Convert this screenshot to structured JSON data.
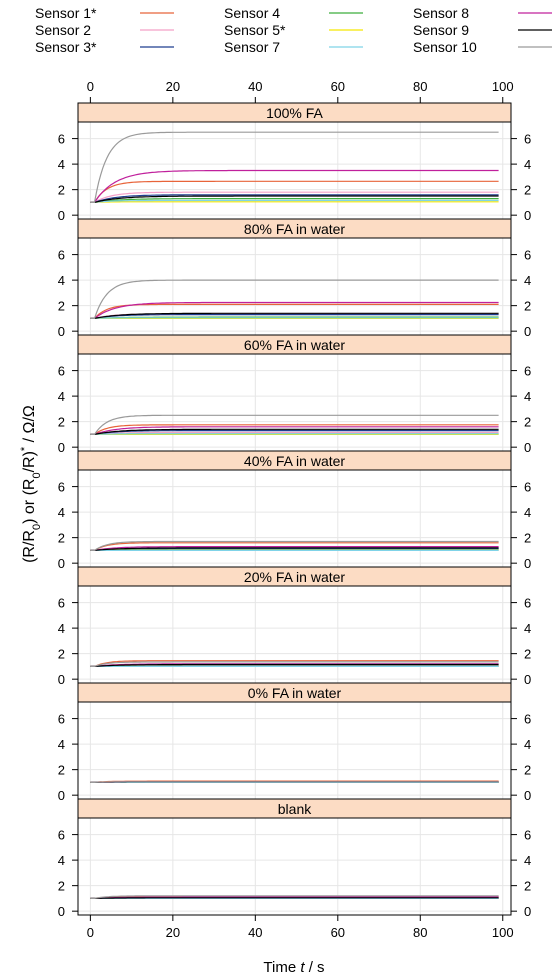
{
  "chart_data": {
    "type": "line",
    "xlabel_parts": [
      "Time ",
      "t",
      "  /  s"
    ],
    "ylabel_parts": [
      "(R/R",
      "0",
      ")  or  (R",
      "0",
      "/R)",
      "*",
      "  /  Ω/Ω"
    ],
    "xlim": [
      -3,
      102
    ],
    "ylim": [
      -0.3,
      7.3
    ],
    "x_ticks": [
      0,
      20,
      40,
      60,
      80,
      100
    ],
    "y_ticks": [
      0,
      2,
      4,
      6
    ],
    "grid": true,
    "legend_position": "top",
    "series": [
      {
        "name": "Sensor 1*",
        "color": "#e8643a",
        "final": [
          2.65,
          2.1,
          1.75,
          1.6,
          1.45,
          1.1,
          1.15
        ]
      },
      {
        "name": "Sensor 2",
        "color": "#f4a0c8",
        "final": [
          1.8,
          1.35,
          1.15,
          1.05,
          1.05,
          1.0,
          1.0
        ]
      },
      {
        "name": "Sensor 3*",
        "color": "#1f3f8f",
        "final": [
          1.6,
          1.3,
          1.3,
          1.15,
          1.05,
          1.0,
          1.05
        ]
      },
      {
        "name": "Sensor 4",
        "color": "#3cae3c",
        "final": [
          1.3,
          1.1,
          1.05,
          1.05,
          1.0,
          1.0,
          1.0
        ]
      },
      {
        "name": "Sensor 5*",
        "color": "#f5e800",
        "final": [
          1.05,
          1.0,
          1.0,
          1.0,
          1.0,
          1.0,
          1.0
        ]
      },
      {
        "name": "Sensor 7",
        "color": "#7fd3e8",
        "final": [
          1.15,
          1.05,
          1.05,
          1.0,
          1.0,
          1.0,
          1.0
        ]
      },
      {
        "name": "Sensor 8",
        "color": "#c0209c",
        "final": [
          3.5,
          2.25,
          1.6,
          1.3,
          1.2,
          1.05,
          1.1
        ]
      },
      {
        "name": "Sensor 9",
        "color": "#000000",
        "final": [
          1.5,
          1.4,
          1.4,
          1.2,
          1.15,
          1.05,
          1.05
        ]
      },
      {
        "name": "Sensor 10",
        "color": "#9a9a9a",
        "final": [
          6.5,
          4.0,
          2.5,
          1.7,
          1.35,
          1.05,
          1.2
        ]
      }
    ],
    "panels": [
      "100% FA",
      "80% FA in water",
      "60% FA in water",
      "40% FA in water",
      "20% FA in water",
      "0% FA in water",
      "blank"
    ]
  }
}
